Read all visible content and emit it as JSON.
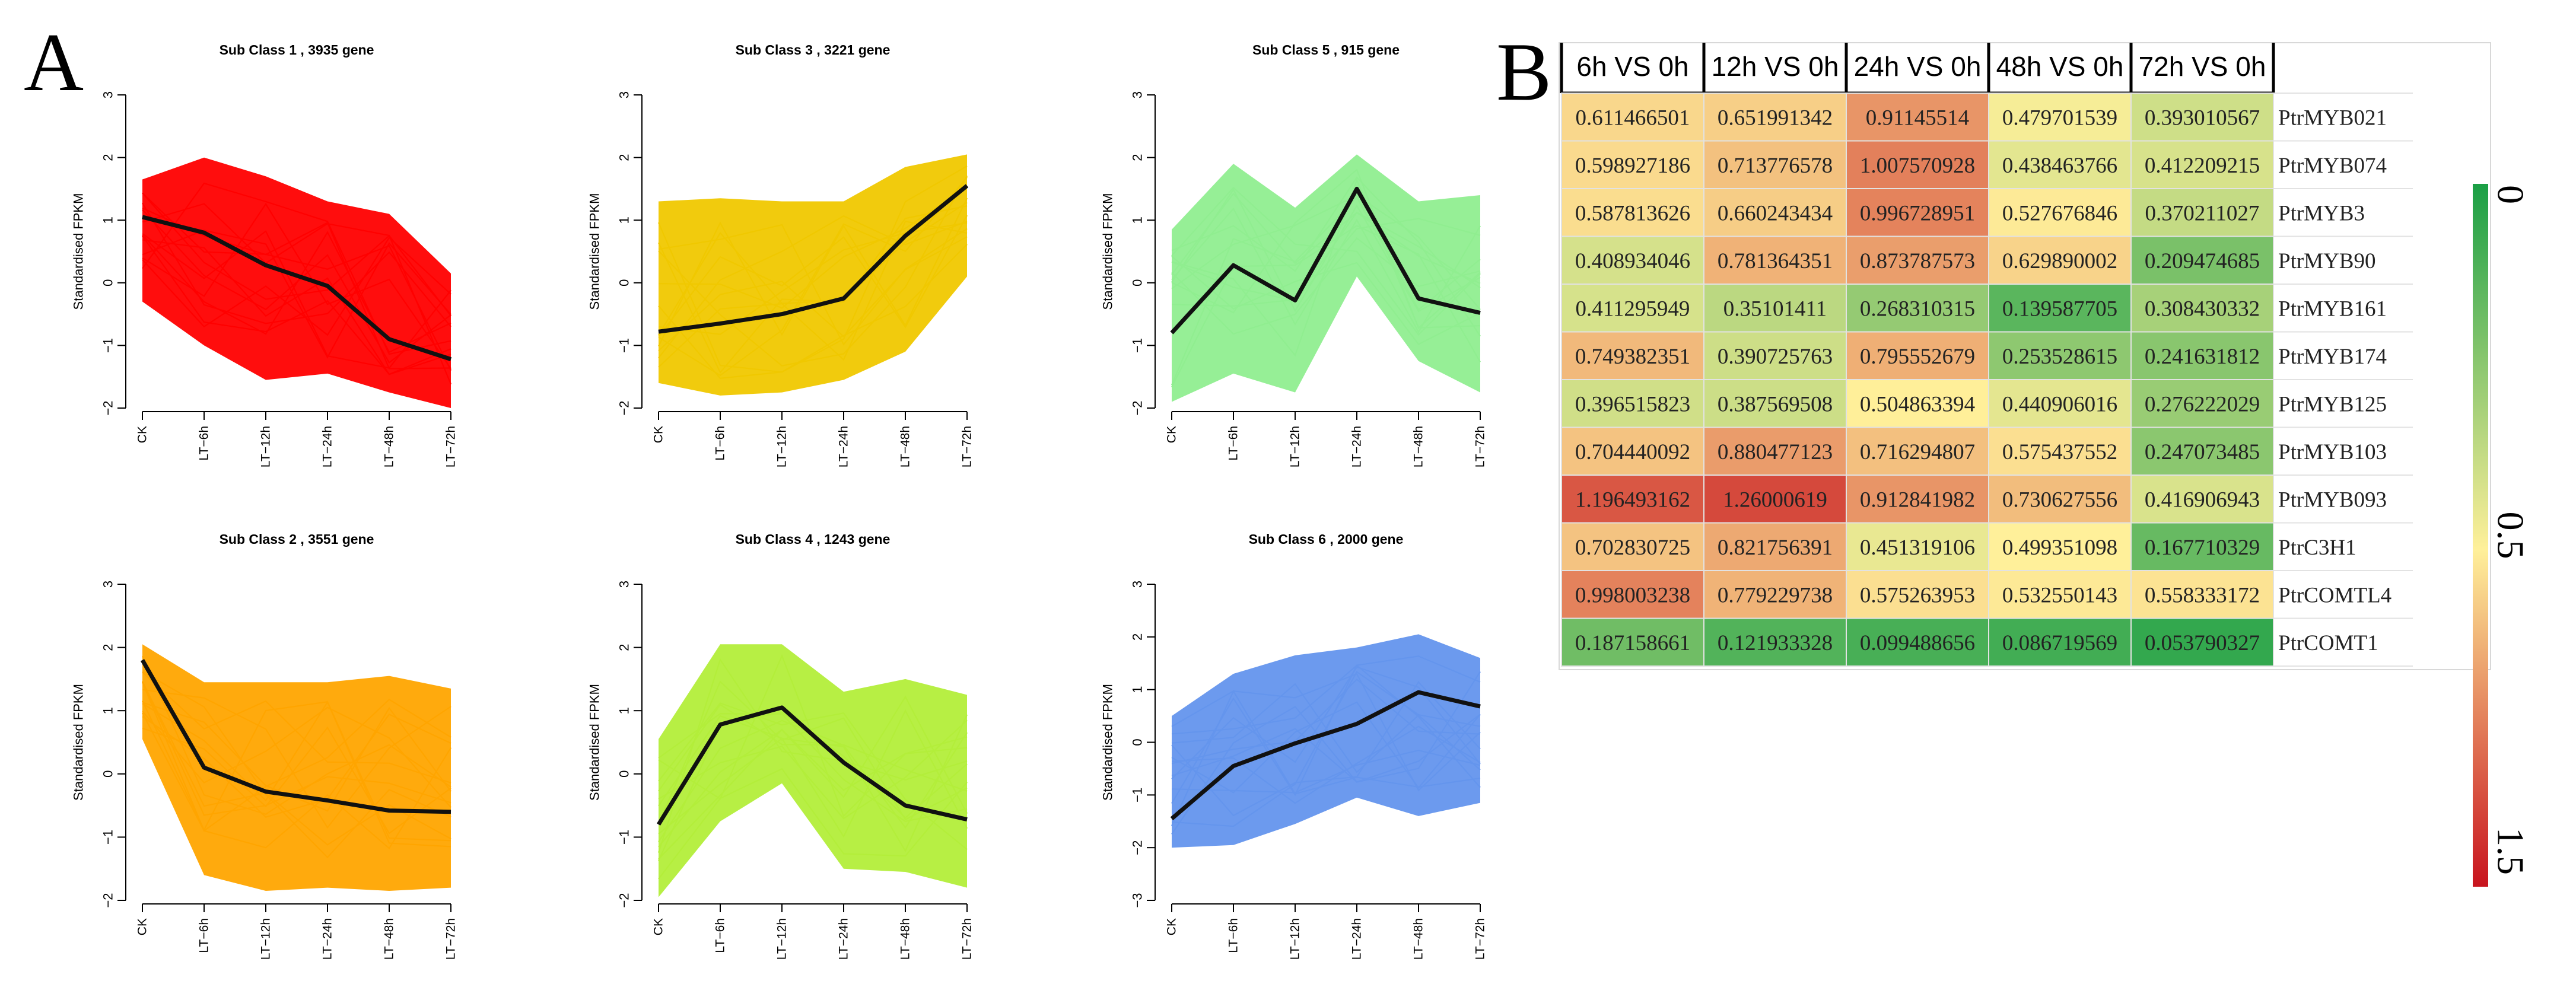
{
  "panels": {
    "a_label": "A",
    "b_label": "B"
  },
  "chart_data": [
    {
      "type": "line",
      "id": "sub1",
      "title": "Sub Class  1  , 3935 gene",
      "categories": [
        "CK",
        "LT−6h",
        "LT−12h",
        "LT−24h",
        "LT−48h",
        "LT−72h"
      ],
      "ylabel": "Standardised FPKM",
      "ylim": [
        -2,
        3
      ],
      "yticks": [
        -2,
        -1,
        0,
        1,
        2,
        3
      ],
      "ytick_labels": [
        "−2",
        "−1",
        "0",
        "1",
        "2",
        "3"
      ],
      "color": "#ff0000",
      "series": [
        {
          "name": "mean",
          "values": [
            1.05,
            0.8,
            0.28,
            -0.05,
            -0.9,
            -1.22
          ]
        }
      ],
      "envelope": {
        "upper": [
          1.65,
          2.0,
          1.7,
          1.3,
          1.1,
          0.15
        ],
        "lower": [
          -0.3,
          -1.0,
          -1.55,
          -1.45,
          -1.75,
          -2.0
        ]
      }
    },
    {
      "type": "line",
      "id": "sub3",
      "title": "Sub Class  3  , 3221 gene",
      "categories": [
        "CK",
        "LT−6h",
        "LT−12h",
        "LT−24h",
        "LT−48h",
        "LT−72h"
      ],
      "ylabel": "Standardised FPKM",
      "ylim": [
        -2,
        3
      ],
      "yticks": [
        -2,
        -1,
        0,
        1,
        2,
        3
      ],
      "ytick_labels": [
        "−2",
        "−1",
        "0",
        "1",
        "2",
        "3"
      ],
      "color": "#f0c800",
      "series": [
        {
          "name": "mean",
          "values": [
            -0.78,
            -0.65,
            -0.5,
            -0.25,
            0.75,
            1.55
          ]
        }
      ],
      "envelope": {
        "upper": [
          1.3,
          1.35,
          1.3,
          1.3,
          1.85,
          2.05
        ],
        "lower": [
          -1.6,
          -1.8,
          -1.75,
          -1.55,
          -1.1,
          0.1
        ]
      }
    },
    {
      "type": "line",
      "id": "sub5",
      "title": "Sub Class  5  , 915 gene",
      "categories": [
        "CK",
        "LT−6h",
        "LT−12h",
        "LT−24h",
        "LT−48h",
        "LT−72h"
      ],
      "ylabel": "Standardised FPKM",
      "ylim": [
        -2,
        3
      ],
      "yticks": [
        -2,
        -1,
        0,
        1,
        2,
        3
      ],
      "ytick_labels": [
        "−2",
        "−1",
        "0",
        "1",
        "2",
        "3"
      ],
      "color": "#90ee90",
      "series": [
        {
          "name": "mean",
          "values": [
            -0.8,
            0.28,
            -0.28,
            1.5,
            -0.25,
            -0.48
          ]
        }
      ],
      "envelope": {
        "upper": [
          0.85,
          1.9,
          1.2,
          2.05,
          1.3,
          1.4
        ],
        "lower": [
          -1.9,
          -1.45,
          -1.75,
          0.1,
          -1.25,
          -1.75
        ]
      }
    },
    {
      "type": "line",
      "id": "sub2",
      "title": "Sub Class  2  , 3551 gene",
      "categories": [
        "CK",
        "LT−6h",
        "LT−12h",
        "LT−24h",
        "LT−48h",
        "LT−72h"
      ],
      "ylabel": "Standardised FPKM",
      "ylim": [
        -2,
        3
      ],
      "yticks": [
        -2,
        -1,
        0,
        1,
        2,
        3
      ],
      "ytick_labels": [
        "−2",
        "−1",
        "0",
        "1",
        "2",
        "3"
      ],
      "color": "#ffa500",
      "series": [
        {
          "name": "mean",
          "values": [
            1.8,
            0.1,
            -0.28,
            -0.42,
            -0.58,
            -0.6
          ]
        }
      ],
      "envelope": {
        "upper": [
          2.05,
          1.45,
          1.45,
          1.45,
          1.55,
          1.35
        ],
        "lower": [
          0.55,
          -1.6,
          -1.85,
          -1.8,
          -1.85,
          -1.8
        ]
      }
    },
    {
      "type": "line",
      "id": "sub4",
      "title": "Sub Class  4  , 1243 gene",
      "categories": [
        "CK",
        "LT−6h",
        "LT−12h",
        "LT−24h",
        "LT−48h",
        "LT−72h"
      ],
      "ylabel": "Standardised FPKM",
      "ylim": [
        -2,
        3
      ],
      "yticks": [
        -2,
        -1,
        0,
        1,
        2,
        3
      ],
      "ytick_labels": [
        "−2",
        "−1",
        "0",
        "1",
        "2",
        "3"
      ],
      "color": "#b3ee3a",
      "series": [
        {
          "name": "mean",
          "values": [
            -0.8,
            0.78,
            1.05,
            0.18,
            -0.5,
            -0.72
          ]
        }
      ],
      "envelope": {
        "upper": [
          0.55,
          2.05,
          2.05,
          1.3,
          1.5,
          1.25
        ],
        "lower": [
          -1.95,
          -0.75,
          -0.15,
          -1.5,
          -1.55,
          -1.8
        ]
      }
    },
    {
      "type": "line",
      "id": "sub6",
      "title": "Sub Class  6  , 2000 gene",
      "categories": [
        "CK",
        "LT−6h",
        "LT−12h",
        "LT−24h",
        "LT−48h",
        "LT−72h"
      ],
      "ylabel": "Standardised FPKM",
      "ylim": [
        -3,
        3
      ],
      "yticks": [
        -3,
        -2,
        -1,
        0,
        1,
        2,
        3
      ],
      "ytick_labels": [
        "−3",
        "−2",
        "−1",
        "0",
        "1",
        "2",
        "3"
      ],
      "color": "#6495ed",
      "series": [
        {
          "name": "mean",
          "values": [
            -1.45,
            -0.45,
            -0.02,
            0.35,
            0.95,
            0.68
          ]
        }
      ],
      "envelope": {
        "upper": [
          0.5,
          1.3,
          1.65,
          1.8,
          2.05,
          1.6
        ],
        "lower": [
          -2.0,
          -1.95,
          -1.55,
          -1.05,
          -1.4,
          -1.15
        ]
      }
    },
    {
      "type": "heatmap",
      "id": "heatmap",
      "columns": [
        "6h VS 0h",
        "12h VS 0h",
        "24h VS 0h",
        "48h VS 0h",
        "72h VS 0h"
      ],
      "rows": [
        "PtrMYB021",
        "PtrMYB074",
        "PtrMYB3",
        "PtrMYB90",
        "PtrMYB161",
        "PtrMYB174",
        "PtrMYB125",
        "PtrMYB103",
        "PtrMYB093",
        "PtrC3H1",
        "PtrCOMTL4",
        "PtrCOMT1"
      ],
      "values": [
        [
          0.611466501,
          0.651991342,
          0.91145514,
          0.479701539,
          0.393010567
        ],
        [
          0.598927186,
          0.713776578,
          1.007570928,
          0.438463766,
          0.412209215
        ],
        [
          0.587813626,
          0.660243434,
          0.996728951,
          0.527676846,
          0.370211027
        ],
        [
          0.408934046,
          0.781364351,
          0.873787573,
          0.629890002,
          0.209474685
        ],
        [
          0.411295949,
          0.35101411,
          0.268310315,
          0.139587705,
          0.308430332
        ],
        [
          0.749382351,
          0.390725763,
          0.795552679,
          0.253528615,
          0.241631812
        ],
        [
          0.396515823,
          0.387569508,
          0.504863394,
          0.440906016,
          0.276222029
        ],
        [
          0.704440092,
          0.880477123,
          0.716294807,
          0.575437552,
          0.247073485
        ],
        [
          1.196493162,
          1.26000619,
          0.912841982,
          0.730627556,
          0.416906943
        ],
        [
          0.702830725,
          0.821756391,
          0.451319106,
          0.499351098,
          0.167710329
        ],
        [
          0.998003238,
          0.779229738,
          0.575263953,
          0.532550143,
          0.558333172
        ],
        [
          0.187158661,
          0.121933328,
          0.099488656,
          0.086719569,
          0.053790327
        ]
      ],
      "cell_labels": [
        [
          "0.611466501",
          "0.651991342",
          "0.91145514",
          "0.479701539",
          "0.393010567"
        ],
        [
          "0.598927186",
          "0.713776578",
          "1.007570928",
          "0.438463766",
          "0.412209215"
        ],
        [
          "0.587813626",
          "0.660243434",
          "0.996728951",
          "0.527676846",
          "0.370211027"
        ],
        [
          "0.408934046",
          "0.781364351",
          "0.873787573",
          "0.629890002",
          "0.209474685"
        ],
        [
          "0.411295949",
          "0.35101411",
          "0.268310315",
          "0.139587705",
          "0.308430332"
        ],
        [
          "0.749382351",
          "0.390725763",
          "0.795552679",
          "0.253528615",
          "0.241631812"
        ],
        [
          "0.396515823",
          "0.387569508",
          "0.504863394",
          "0.440906016",
          "0.276222029"
        ],
        [
          "0.704440092",
          "0.880477123",
          "0.716294807",
          "0.575437552",
          "0.247073485"
        ],
        [
          "1.196493162",
          "1.26000619",
          "0.912841982",
          "0.730627556",
          "0.416906943"
        ],
        [
          "0.702830725",
          "0.821756391",
          "0.451319106",
          "0.499351098",
          "0.167710329"
        ],
        [
          "0.998003238",
          "0.779229738",
          "0.575263953",
          "0.532550143",
          "0.558333172"
        ],
        [
          "0.187158661",
          "0.121933328",
          "0.099488656",
          "0.086719569",
          "0.053790327"
        ]
      ],
      "color_scale": {
        "min": 0,
        "mid": 0.5,
        "max": 1.5,
        "low_color": "#1a9f45",
        "mid_color": "#fff09a",
        "high_color": "#c8141e"
      },
      "legend_labels": [
        "0",
        "0.5",
        "1.5"
      ]
    }
  ]
}
